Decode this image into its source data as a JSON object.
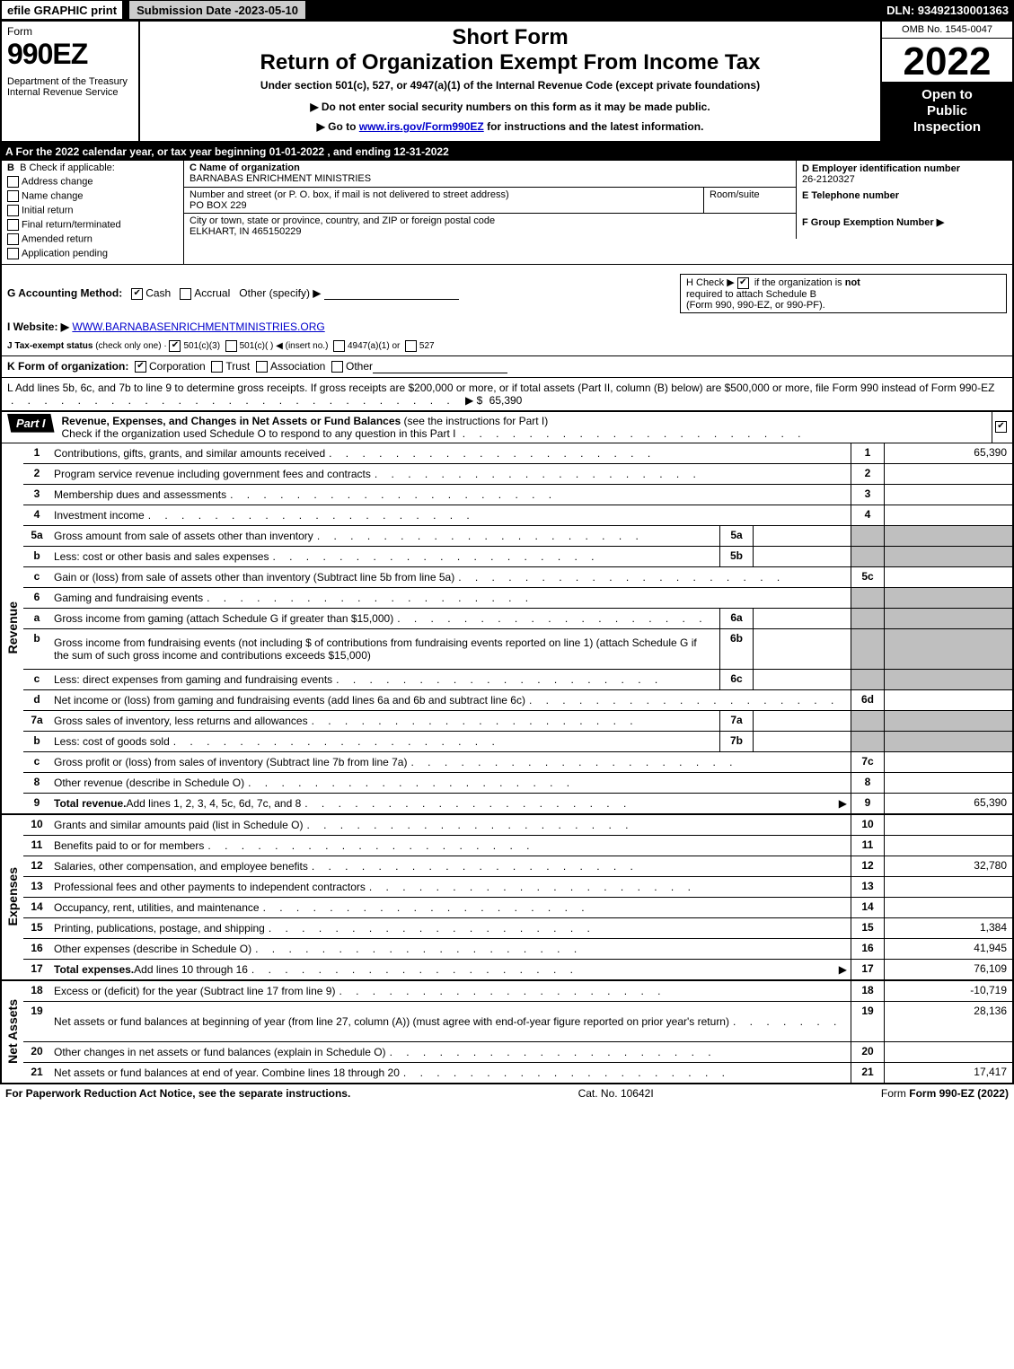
{
  "top_bar": {
    "efile": "efile GRAPHIC print",
    "submission_label": "Submission Date - ",
    "submission_value": "2023-05-10",
    "dln": "DLN: 93492130001363"
  },
  "header": {
    "form_word": "Form",
    "form_number": "990EZ",
    "dept": "Department of the Treasury\nInternal Revenue Service",
    "short_form": "Short Form",
    "return_of": "Return of Organization Exempt From Income Tax",
    "under_section": "Under section 501(c), 527, or 4947(a)(1) of the Internal Revenue Code (except private foundations)",
    "no_ssn": "▶ Do not enter social security numbers on this form as it may be made public.",
    "goto_prefix": "▶ Go to ",
    "goto_link_text": "www.irs.gov/Form990EZ",
    "goto_suffix": " for instructions and the latest information.",
    "omb": "OMB No. 1545-0047",
    "tax_year": "2022",
    "open1": "Open to",
    "open2": "Public",
    "open3": "Inspection"
  },
  "row_a": "A  For the 2022 calendar year, or tax year beginning 01-01-2022 , and ending 12-31-2022",
  "box_b": {
    "header": "B  Check if applicable:",
    "opts": [
      "Address change",
      "Name change",
      "Initial return",
      "Final return/terminated",
      "Amended return",
      "Application pending"
    ]
  },
  "box_c": {
    "name_label": "C Name of organization",
    "name": "BARNABAS ENRICHMENT MINISTRIES",
    "street_label": "Number and street (or P. O. box, if mail is not delivered to street address)",
    "street": "PO BOX 229",
    "room_label": "Room/suite",
    "city_label": "City or town, state or province, country, and ZIP or foreign postal code",
    "city": "ELKHART, IN  465150229"
  },
  "box_d": {
    "label": "D Employer identification number",
    "value": "26-2120327"
  },
  "box_e": {
    "label": "E Telephone number",
    "value": ""
  },
  "box_f": {
    "label": "F Group Exemption Number  ▶",
    "value": ""
  },
  "row_g": {
    "label": "G Accounting Method:",
    "cash": "Cash",
    "accrual": "Accrual",
    "other": "Other (specify) ▶"
  },
  "row_h": {
    "line1_prefix": "H  Check ▶ ",
    "line1_suffix": " if the organization is ",
    "not": "not",
    "line2": "required to attach Schedule B",
    "line3": "(Form 990, 990-EZ, or 990-PF)."
  },
  "row_i": {
    "label": "I Website: ▶",
    "link": "WWW.BARNABASENRICHMENTMINISTRIES.ORG"
  },
  "row_j": {
    "label": "J Tax-exempt status",
    "sub": "(check only one) ·",
    "t501c3": "501(c)(3)",
    "t501c": "501(c)(  ) ◀ (insert no.)",
    "t4947": "4947(a)(1) or",
    "t527": "527"
  },
  "row_k": {
    "label": "K Form of organization:",
    "corp": "Corporation",
    "trust": "Trust",
    "assoc": "Association",
    "other": "Other"
  },
  "row_l": {
    "text": "L Add lines 5b, 6c, and 7b to line 9 to determine gross receipts. If gross receipts are $200,000 or more, or if total assets (Part II, column (B) below) are $500,000 or more, file Form 990 instead of Form 990-EZ",
    "arrow": "▶ $",
    "amount": "65,390"
  },
  "part1": {
    "tab": "Part I",
    "title_bold": "Revenue, Expenses, and Changes in Net Assets or Fund Balances",
    "title_rest": " (see the instructions for Part I)",
    "check_line": "Check if the organization used Schedule O to respond to any question in this Part I"
  },
  "revenue_label": "Revenue",
  "expenses_label": "Expenses",
  "netassets_label": "Net Assets",
  "lines_revenue": [
    {
      "n": "1",
      "desc": "Contributions, gifts, grants, and similar amounts received",
      "rlabel": "1",
      "rval": "65,390"
    },
    {
      "n": "2",
      "desc": "Program service revenue including government fees and contracts",
      "rlabel": "2",
      "rval": ""
    },
    {
      "n": "3",
      "desc": "Membership dues and assessments",
      "rlabel": "3",
      "rval": ""
    },
    {
      "n": "4",
      "desc": "Investment income",
      "rlabel": "4",
      "rval": ""
    },
    {
      "n": "5a",
      "desc": "Gross amount from sale of assets other than inventory",
      "sublabel": "5a",
      "subval": "",
      "shaded": true
    },
    {
      "n": "b",
      "desc": "Less: cost or other basis and sales expenses",
      "sublabel": "5b",
      "subval": "",
      "shaded": true
    },
    {
      "n": "c",
      "desc": "Gain or (loss) from sale of assets other than inventory (Subtract line 5b from line 5a)",
      "rlabel": "5c",
      "rval": ""
    },
    {
      "n": "6",
      "desc": "Gaming and fundraising events",
      "shaded": true
    },
    {
      "n": "a",
      "desc": "Gross income from gaming (attach Schedule G if greater than $15,000)",
      "sublabel": "6a",
      "subval": "",
      "shaded": true
    },
    {
      "n": "b",
      "desc": "Gross income from fundraising events (not including $                    of contributions from fundraising events reported on line 1) (attach Schedule G if the sum of such gross income and contributions exceeds $15,000)",
      "sublabel": "6b",
      "subval": "",
      "shaded": true,
      "tall": true
    },
    {
      "n": "c",
      "desc": "Less: direct expenses from gaming and fundraising events",
      "sublabel": "6c",
      "subval": "",
      "shaded": true
    },
    {
      "n": "d",
      "desc": "Net income or (loss) from gaming and fundraising events (add lines 6a and 6b and subtract line 6c)",
      "rlabel": "6d",
      "rval": ""
    },
    {
      "n": "7a",
      "desc": "Gross sales of inventory, less returns and allowances",
      "sublabel": "7a",
      "subval": "",
      "shaded": true
    },
    {
      "n": "b",
      "desc": "Less: cost of goods sold",
      "sublabel": "7b",
      "subval": "",
      "shaded": true
    },
    {
      "n": "c",
      "desc": "Gross profit or (loss) from sales of inventory (Subtract line 7b from line 7a)",
      "rlabel": "7c",
      "rval": ""
    },
    {
      "n": "8",
      "desc": "Other revenue (describe in Schedule O)",
      "rlabel": "8",
      "rval": ""
    },
    {
      "n": "9",
      "desc_bold": "Total revenue.",
      "desc": " Add lines 1, 2, 3, 4, 5c, 6d, 7c, and 8",
      "rlabel": "9",
      "rval": "65,390",
      "arrow": true
    }
  ],
  "lines_expenses": [
    {
      "n": "10",
      "desc": "Grants and similar amounts paid (list in Schedule O)",
      "rlabel": "10",
      "rval": ""
    },
    {
      "n": "11",
      "desc": "Benefits paid to or for members",
      "rlabel": "11",
      "rval": ""
    },
    {
      "n": "12",
      "desc": "Salaries, other compensation, and employee benefits",
      "rlabel": "12",
      "rval": "32,780"
    },
    {
      "n": "13",
      "desc": "Professional fees and other payments to independent contractors",
      "rlabel": "13",
      "rval": ""
    },
    {
      "n": "14",
      "desc": "Occupancy, rent, utilities, and maintenance",
      "rlabel": "14",
      "rval": ""
    },
    {
      "n": "15",
      "desc": "Printing, publications, postage, and shipping",
      "rlabel": "15",
      "rval": "1,384"
    },
    {
      "n": "16",
      "desc": "Other expenses (describe in Schedule O)",
      "rlabel": "16",
      "rval": "41,945"
    },
    {
      "n": "17",
      "desc_bold": "Total expenses.",
      "desc": " Add lines 10 through 16",
      "rlabel": "17",
      "rval": "76,109",
      "arrow": true
    }
  ],
  "lines_netassets": [
    {
      "n": "18",
      "desc": "Excess or (deficit) for the year (Subtract line 17 from line 9)",
      "rlabel": "18",
      "rval": "-10,719"
    },
    {
      "n": "19",
      "desc": "Net assets or fund balances at beginning of year (from line 27, column (A)) (must agree with end-of-year figure reported on prior year's return)",
      "rlabel": "19",
      "rval": "28,136",
      "tall": true
    },
    {
      "n": "20",
      "desc": "Other changes in net assets or fund balances (explain in Schedule O)",
      "rlabel": "20",
      "rval": ""
    },
    {
      "n": "21",
      "desc": "Net assets or fund balances at end of year. Combine lines 18 through 20",
      "rlabel": "21",
      "rval": "17,417"
    }
  ],
  "footer": {
    "paperwork": "For Paperwork Reduction Act Notice, see the separate instructions.",
    "catno": "Cat. No. 10642I",
    "formref": "Form 990-EZ (2022)"
  },
  "colors": {
    "black": "#000000",
    "white": "#ffffff",
    "shade": "#bfbfbf",
    "link": "#0000cc"
  }
}
